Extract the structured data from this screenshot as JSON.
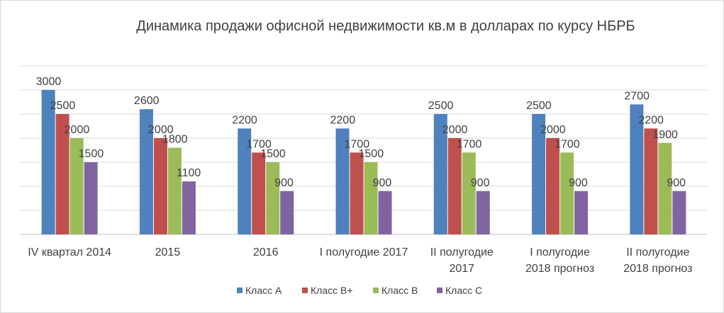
{
  "chart_data": {
    "type": "bar",
    "title": "Динамика продажи офисной недвижимости кв.м в долларах по курсу НБРБ",
    "xlabel": "",
    "ylabel": "",
    "ylim": [
      0,
      3500
    ],
    "grid": true,
    "legend_position": "bottom",
    "categories": [
      [
        "IV квартал  2014"
      ],
      [
        "2015"
      ],
      [
        "2016"
      ],
      [
        "I полугодие 2017"
      ],
      [
        "II полугодие",
        "2017"
      ],
      [
        "I  полугодие",
        "2018 прогноз"
      ],
      [
        "II полугодие",
        "2018 прогноз"
      ]
    ],
    "series": [
      {
        "name": "Класс A",
        "color": "#4f81bd",
        "values": [
          3000,
          2600,
          2200,
          2200,
          2500,
          2500,
          2700
        ]
      },
      {
        "name": "Класс B+",
        "color": "#c0504d",
        "values": [
          2500,
          2000,
          1700,
          1700,
          2000,
          2000,
          2200
        ]
      },
      {
        "name": "Класс B",
        "color": "#9bbb59",
        "values": [
          2000,
          1800,
          1500,
          1500,
          1700,
          1700,
          1900
        ]
      },
      {
        "name": "Класс C",
        "color": "#8064a2",
        "values": [
          1500,
          1100,
          900,
          900,
          900,
          900,
          900
        ]
      }
    ]
  }
}
